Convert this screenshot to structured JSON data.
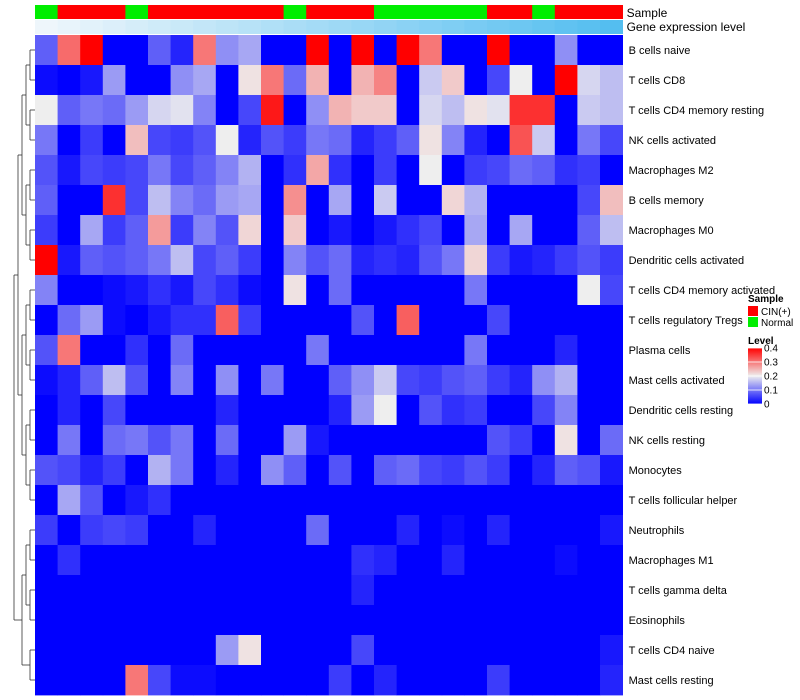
{
  "chart_data": {
    "type": "heatmap",
    "annotations": {
      "sample_label": "Sample",
      "expression_label": "Gene expression level",
      "sample_groups": [
        "Normal",
        "CIN(+)",
        "CIN(+)",
        "CIN(+)",
        "Normal",
        "CIN(+)",
        "CIN(+)",
        "CIN(+)",
        "CIN(+)",
        "CIN(+)",
        "CIN(+)",
        "Normal",
        "CIN(+)",
        "CIN(+)",
        "CIN(+)",
        "Normal",
        "Normal",
        "Normal",
        "Normal",
        "Normal",
        "CIN(+)",
        "CIN(+)",
        "Normal",
        "CIN(+)",
        "CIN(+)",
        "CIN(+)"
      ]
    },
    "rows": [
      {
        "name": "B cells naive",
        "values": [
          0.08,
          0.31,
          0.4,
          0,
          0,
          0.08,
          0.03,
          0.3,
          0.12,
          0.14,
          0,
          0,
          0.4,
          0,
          0.4,
          0,
          0.4,
          0.3,
          0,
          0,
          0.4,
          0,
          0,
          0.12,
          0,
          0
        ]
      },
      {
        "name": "T cells CD8",
        "values": [
          0.01,
          0,
          0.02,
          0.13,
          0,
          0,
          0.12,
          0.14,
          0,
          0.21,
          0.3,
          0.09,
          0.25,
          0,
          0.25,
          0.29,
          0,
          0.17,
          0.23,
          0,
          0.06,
          0.2,
          0,
          0.4,
          0.18,
          0.16
        ]
      },
      {
        "name": "T cells CD4 memory resting",
        "values": [
          0.2,
          0.08,
          0.1,
          0.09,
          0.13,
          0.18,
          0.19,
          0.11,
          0,
          0.06,
          0.38,
          0,
          0.12,
          0.25,
          0.23,
          0.23,
          0,
          0.18,
          0.16,
          0.21,
          0.19,
          0.36,
          0.36,
          0,
          0.17,
          0.16
        ]
      },
      {
        "name": "NK cells activated",
        "values": [
          0.1,
          0,
          0.05,
          0,
          0.24,
          0.06,
          0.05,
          0.07,
          0.2,
          0.03,
          0.07,
          0.05,
          0.1,
          0.09,
          0.03,
          0.05,
          0.08,
          0.21,
          0.11,
          0.03,
          0,
          0.33,
          0.17,
          0,
          0.1,
          0.06
        ]
      },
      {
        "name": "Macrophages M2",
        "values": [
          0.07,
          0.02,
          0.06,
          0.05,
          0.06,
          0.1,
          0.06,
          0.08,
          0.11,
          0.15,
          0,
          0.04,
          0.26,
          0.04,
          0,
          0.05,
          0,
          0.2,
          0,
          0.05,
          0.06,
          0.09,
          0.08,
          0.04,
          0.05,
          0
        ]
      },
      {
        "name": "B cells memory",
        "values": [
          0.08,
          0,
          0,
          0.36,
          0.06,
          0.16,
          0.11,
          0.09,
          0.13,
          0.14,
          0,
          0.28,
          0,
          0.14,
          0,
          0.17,
          0,
          0,
          0.22,
          0.15,
          0,
          0,
          0,
          0,
          0.06,
          0.24
        ]
      },
      {
        "name": "Macrophages M0",
        "values": [
          0.05,
          0,
          0.14,
          0.05,
          0.08,
          0.27,
          0.05,
          0.11,
          0.07,
          0.22,
          0,
          0.23,
          0,
          0.02,
          0,
          0.02,
          0.04,
          0.06,
          0,
          0.14,
          0,
          0.14,
          0,
          0,
          0.08,
          0.16
        ]
      },
      {
        "name": "Dendritic cells activated",
        "values": [
          0.4,
          0.02,
          0.08,
          0.07,
          0.08,
          0.1,
          0.16,
          0.06,
          0.08,
          0.05,
          0,
          0.11,
          0.07,
          0.09,
          0.03,
          0.04,
          0.03,
          0.07,
          0.1,
          0.22,
          0.05,
          0.02,
          0.03,
          0.05,
          0.07,
          0.05
        ]
      },
      {
        "name": "T cells CD4 memory activated",
        "values": [
          0.11,
          0,
          0,
          0.01,
          0.02,
          0.04,
          0.02,
          0.06,
          0.04,
          0.01,
          0,
          0.21,
          0,
          0.09,
          0,
          0,
          0,
          0,
          0,
          0.1,
          0,
          0,
          0,
          0,
          0.2,
          0.06
        ]
      },
      {
        "name": "T cells regulatory  Tregs",
        "values": [
          0,
          0.09,
          0.13,
          0.01,
          0,
          0.02,
          0.04,
          0.04,
          0.32,
          0.05,
          0,
          0,
          0,
          0,
          0.07,
          0,
          0.32,
          0,
          0,
          0,
          0.06,
          0,
          0,
          0,
          0,
          0
        ]
      },
      {
        "name": "Plasma cells",
        "values": [
          0.07,
          0.3,
          0,
          0,
          0.04,
          0,
          0.09,
          0,
          0,
          0,
          0,
          0,
          0.1,
          0,
          0,
          0,
          0,
          0,
          0,
          0.1,
          0,
          0,
          0,
          0.03,
          0,
          0
        ]
      },
      {
        "name": "Mast cells activated",
        "values": [
          0.01,
          0.03,
          0.08,
          0.16,
          0.07,
          0,
          0.11,
          0,
          0.12,
          0,
          0.1,
          0,
          0,
          0.08,
          0.12,
          0.17,
          0.06,
          0.05,
          0.07,
          0.08,
          0.05,
          0.03,
          0.12,
          0.15,
          0,
          0
        ]
      },
      {
        "name": "Dendritic cells resting",
        "values": [
          0,
          0.03,
          0,
          0.06,
          0,
          0,
          0,
          0,
          0.03,
          0,
          0,
          0,
          0,
          0.03,
          0.13,
          0.2,
          0,
          0.07,
          0.04,
          0.05,
          0,
          0,
          0.06,
          0.11,
          0,
          0
        ]
      },
      {
        "name": "NK cells resting",
        "values": [
          0,
          0.1,
          0,
          0.09,
          0.1,
          0.07,
          0.1,
          0,
          0.09,
          0,
          0,
          0.13,
          0.02,
          0,
          0,
          0,
          0,
          0,
          0,
          0,
          0.07,
          0.05,
          0,
          0.21,
          0,
          0.09
        ]
      },
      {
        "name": "Monocytes",
        "values": [
          0.07,
          0.06,
          0.03,
          0.05,
          0,
          0.15,
          0.1,
          0,
          0.03,
          0,
          0.12,
          0.08,
          0,
          0.07,
          0,
          0.08,
          0.09,
          0.06,
          0.05,
          0.07,
          0.05,
          0,
          0.03,
          0.08,
          0.07,
          0.02
        ]
      },
      {
        "name": "T cells follicular helper",
        "values": [
          0,
          0.14,
          0.07,
          0,
          0.02,
          0.04,
          0,
          0,
          0,
          0,
          0,
          0,
          0,
          0,
          0,
          0,
          0,
          0,
          0,
          0,
          0,
          0,
          0,
          0,
          0,
          0
        ]
      },
      {
        "name": "Neutrophils",
        "values": [
          0.05,
          0,
          0.05,
          0.06,
          0.05,
          0,
          0,
          0.03,
          0,
          0,
          0,
          0,
          0.09,
          0,
          0,
          0,
          0.03,
          0,
          0.01,
          0,
          0.03,
          0,
          0,
          0,
          0,
          0.02
        ]
      },
      {
        "name": "Macrophages M1",
        "values": [
          0,
          0.04,
          0,
          0,
          0,
          0,
          0,
          0,
          0,
          0,
          0,
          0,
          0,
          0,
          0.04,
          0.03,
          0,
          0,
          0.03,
          0,
          0,
          0,
          0,
          0.01,
          0,
          0
        ]
      },
      {
        "name": "T cells gamma delta",
        "values": [
          0,
          0,
          0,
          0,
          0,
          0,
          0,
          0,
          0,
          0,
          0,
          0,
          0,
          0,
          0.03,
          0,
          0,
          0,
          0,
          0,
          0,
          0,
          0,
          0,
          0,
          0
        ]
      },
      {
        "name": "Eosinophils",
        "values": [
          0,
          0,
          0,
          0,
          0,
          0,
          0,
          0,
          0,
          0,
          0,
          0,
          0,
          0,
          0,
          0,
          0,
          0,
          0,
          0,
          0,
          0,
          0,
          0,
          0,
          0
        ]
      },
      {
        "name": "T cells CD4 naive",
        "values": [
          0,
          0,
          0,
          0,
          0,
          0,
          0,
          0,
          0.13,
          0.21,
          0,
          0,
          0,
          0,
          0.06,
          0,
          0,
          0,
          0,
          0,
          0,
          0,
          0,
          0,
          0,
          0.02
        ]
      },
      {
        "name": "Mast cells resting",
        "values": [
          0,
          0,
          0,
          0,
          0.3,
          0.06,
          0.01,
          0.01,
          0,
          0,
          0,
          0,
          0,
          0.05,
          0,
          0.03,
          0,
          0,
          0,
          0,
          0.05,
          0,
          0,
          0,
          0,
          0.03
        ]
      }
    ],
    "legend": {
      "sample_title": "Sample",
      "sample_entries": [
        {
          "name": "CIN(+)",
          "color": "#FF0000"
        },
        {
          "name": "Normal",
          "color": "#00EE00"
        }
      ],
      "level_title": "Level",
      "level_ticks": [
        "0.4",
        "0.3",
        "0.2",
        "0.1",
        "0"
      ],
      "range": [
        0,
        0.4
      ]
    },
    "colors": {
      "low": "#0000FF",
      "mid": "#EEEEEE",
      "high": "#FF0000",
      "expression_bar": "#54BEF0",
      "expression_bar_light": "#EEF6FB"
    }
  }
}
